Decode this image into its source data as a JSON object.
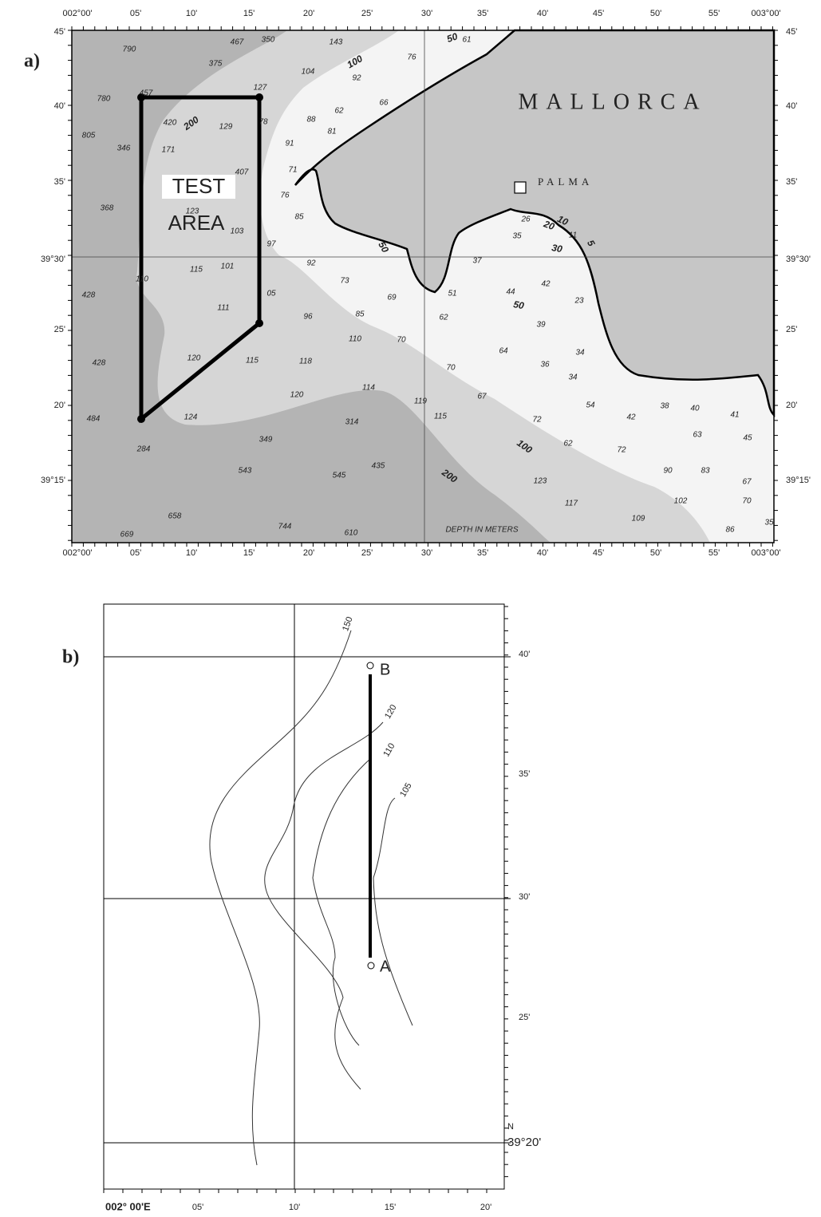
{
  "panel_a": {
    "label": "a)",
    "top_ticks": [
      "002°00'",
      "05'",
      "10'",
      "15'",
      "20'",
      "25'",
      "30'",
      "35'",
      "40'",
      "45'",
      "50'",
      "55'",
      "003°00'"
    ],
    "bottom_ticks": [
      "002°00'",
      "05'",
      "10'",
      "15'",
      "20'",
      "25'",
      "30'",
      "35'",
      "40'",
      "45'",
      "50'",
      "55'",
      "003°00'"
    ],
    "left_ticks": [
      "45'",
      "40'",
      "35'",
      "39°30'",
      "25'",
      "20'",
      "39°15'"
    ],
    "right_ticks": [
      "45'",
      "40'",
      "35'",
      "39°30'",
      "25'",
      "20'",
      "39°15'"
    ],
    "island": "MALLORCA",
    "city": "PALMA",
    "test_area": [
      "TEST",
      "AREA"
    ],
    "legend": "DEPTH IN METERS",
    "contour_labels": [
      "100",
      "50",
      "200",
      "50",
      "20",
      "10",
      "5",
      "30",
      "50",
      "100",
      "200"
    ],
    "soundings": [
      "790",
      "467",
      "350",
      "143",
      "375",
      "104",
      "92",
      "76",
      "61",
      "780",
      "457",
      "127",
      "62",
      "66",
      "420",
      "129",
      "78",
      "88",
      "81",
      "805",
      "346",
      "171",
      "91",
      "407",
      "71",
      "76",
      "368",
      "123",
      "85",
      "103",
      "26",
      "11",
      "35",
      "97",
      "92",
      "115",
      "101",
      "37",
      "110",
      "73",
      "69",
      "51",
      "44",
      "42",
      "428",
      "111",
      "05",
      "96",
      "85",
      "62",
      "23",
      "39",
      "110",
      "70",
      "64",
      "34",
      "428",
      "120",
      "115",
      "118",
      "36",
      "70",
      "34",
      "114",
      "120",
      "119",
      "67",
      "54",
      "38",
      "40",
      "42",
      "41",
      "484",
      "124",
      "314",
      "115",
      "72",
      "63",
      "45",
      "349",
      "62",
      "284",
      "72",
      "543",
      "435",
      "545",
      "90",
      "83",
      "123",
      "67",
      "117",
      "102",
      "70",
      "658",
      "109",
      "744",
      "669",
      "610",
      "86",
      "35"
    ]
  },
  "panel_b": {
    "label": "b)",
    "right_ticks": [
      "40'",
      "35'",
      "30'",
      "25'"
    ],
    "north": "N",
    "lat_label": "39°20'",
    "bottom_ticks": [
      "002° 00'E",
      "05'",
      "10'",
      "15'",
      "20'"
    ],
    "contour_labels": [
      "150",
      "120",
      "110",
      "105"
    ],
    "points": [
      "A",
      "B"
    ]
  }
}
